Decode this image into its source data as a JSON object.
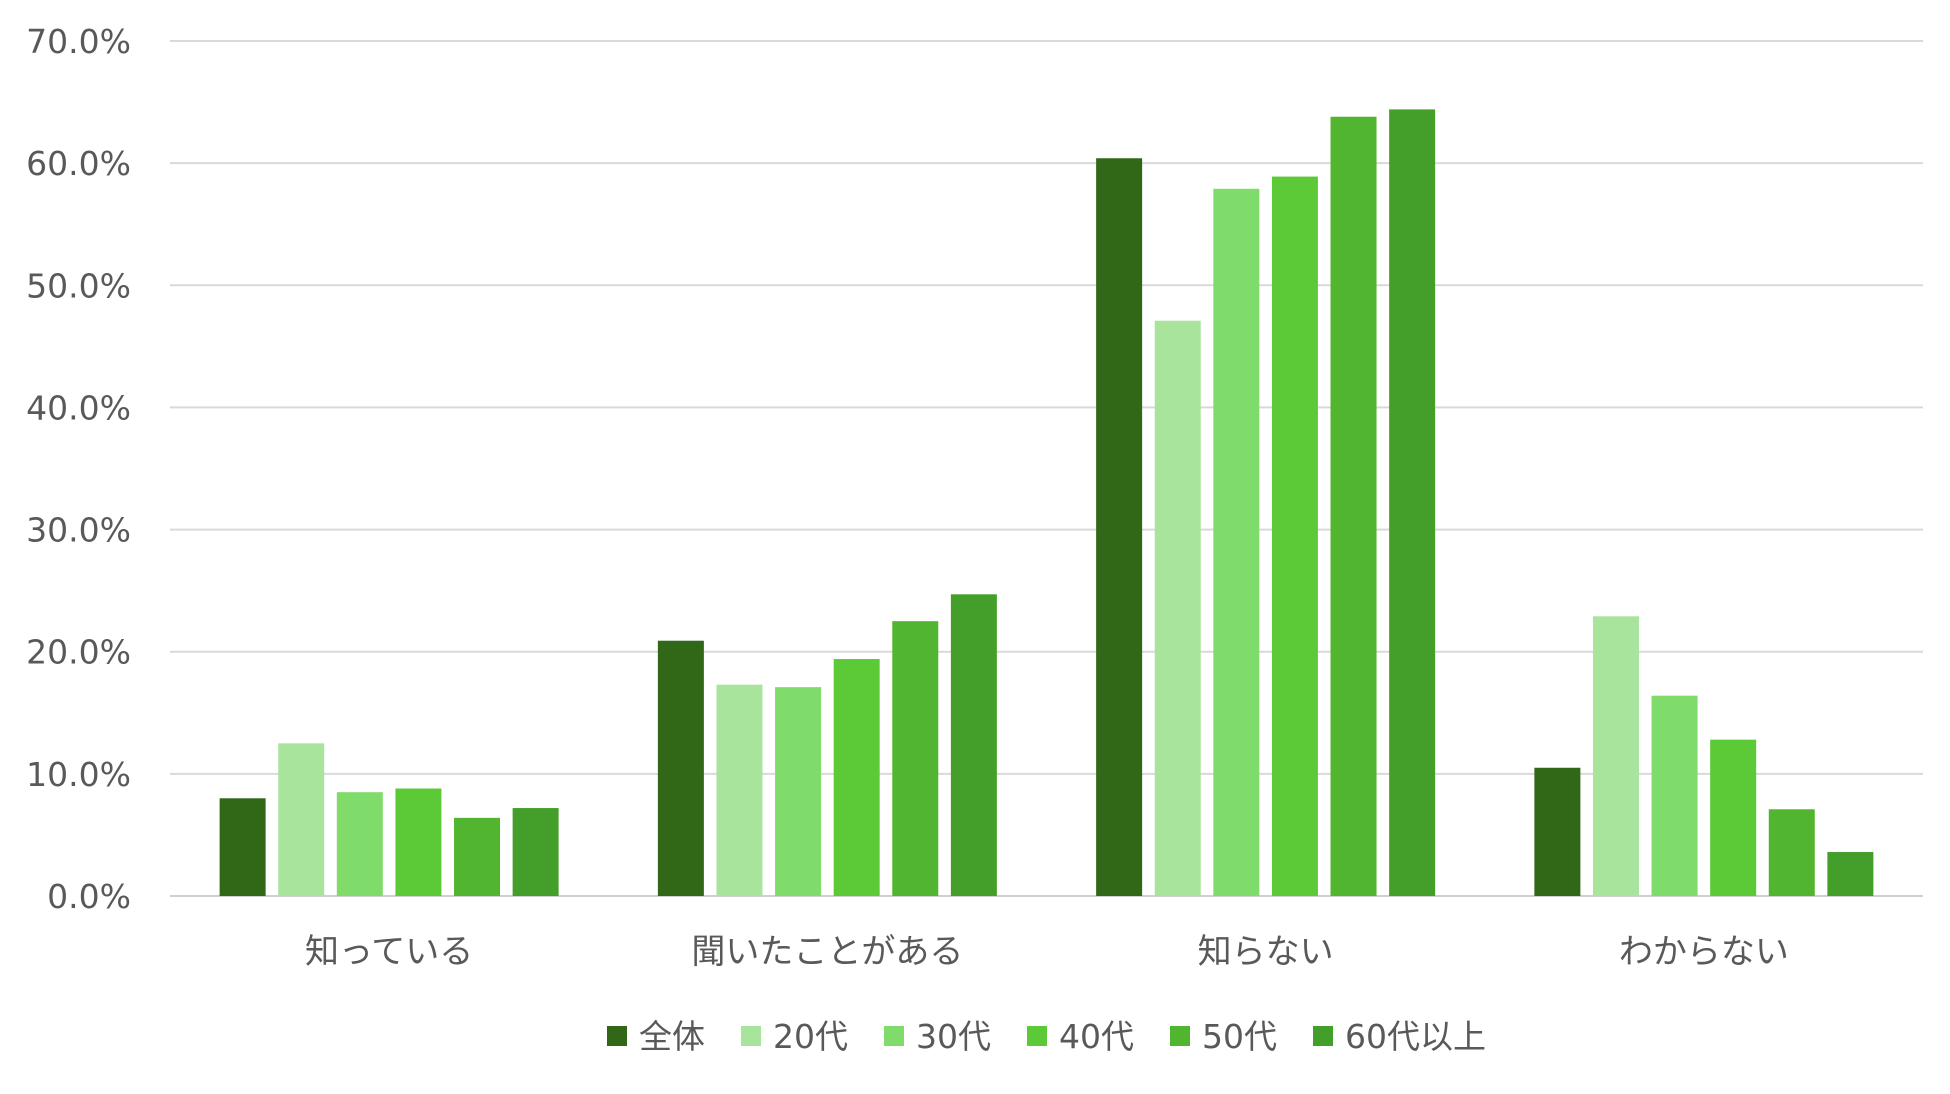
{
  "chart_data": {
    "type": "bar",
    "categories": [
      "知っている",
      "聞いたことがある",
      "知らない",
      "わからない"
    ],
    "series": [
      {
        "name": "全体",
        "color": "#306818",
        "values": [
          8.0,
          20.9,
          60.4,
          10.5
        ]
      },
      {
        "name": "20代",
        "color": "#A8E49C",
        "values": [
          12.5,
          17.3,
          47.1,
          22.9
        ]
      },
      {
        "name": "30代",
        "color": "#7FDB6A",
        "values": [
          8.5,
          17.1,
          57.9,
          16.4
        ]
      },
      {
        "name": "40代",
        "color": "#5CC936",
        "values": [
          8.8,
          19.4,
          58.9,
          12.8
        ]
      },
      {
        "name": "50代",
        "color": "#52B52F",
        "values": [
          6.4,
          22.5,
          63.8,
          7.1
        ]
      },
      {
        "name": "60代以上",
        "color": "#449E2A",
        "values": [
          7.2,
          24.7,
          64.4,
          3.6
        ]
      }
    ],
    "yticks": [
      "0.0%",
      "10.0%",
      "20.0%",
      "30.0%",
      "40.0%",
      "50.0%",
      "60.0%",
      "70.0%"
    ],
    "ylim": [
      0,
      70
    ],
    "grid": true,
    "legend_position": "bottom"
  }
}
